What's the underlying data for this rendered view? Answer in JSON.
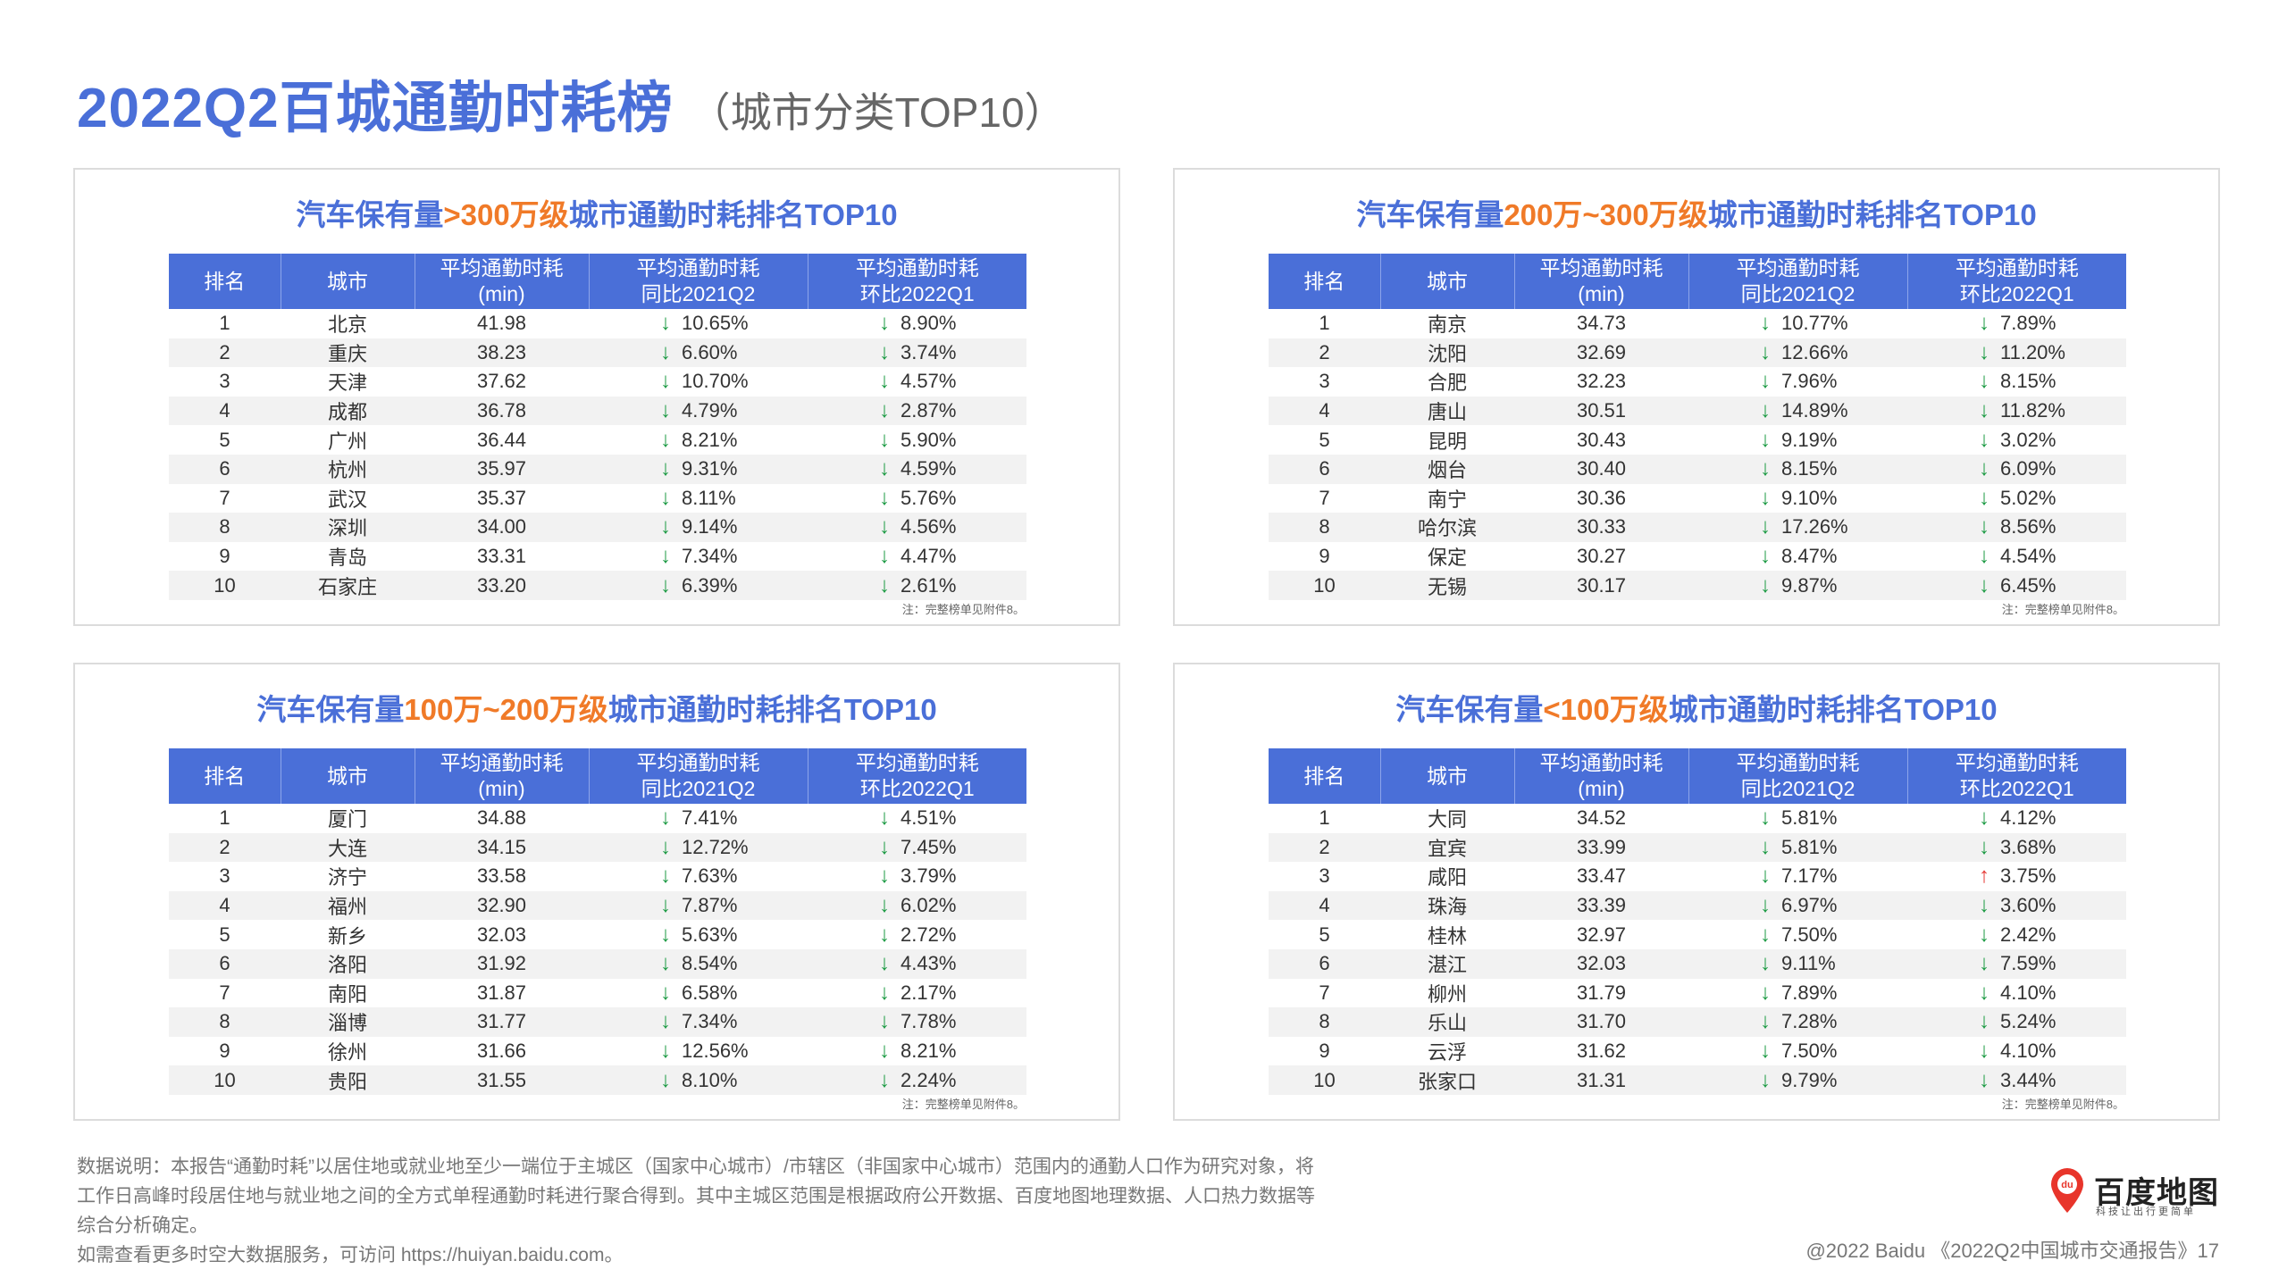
{
  "title": {
    "main": "2022Q2百城通勤时耗榜",
    "sub": "（城市分类TOP10）"
  },
  "headers": {
    "rank": "排名",
    "city": "城市",
    "avg1": "平均通勤时耗",
    "avg2": "(min)",
    "yoy1": "平均通勤时耗",
    "yoy2": "同比2021Q2",
    "qoq1": "平均通勤时耗",
    "qoq2": "环比2022Q1"
  },
  "note": "注：完整榜单见附件8。",
  "colors": {
    "accent": "#4a6fd8",
    "highlight": "#f07a28",
    "down": "#1c9a43",
    "up": "#e53935"
  },
  "panels": [
    {
      "title_pre": "汽车保有量",
      "title_hl": ">300万级",
      "title_post": "城市通勤时耗排名TOP10",
      "rows": [
        {
          "rank": "1",
          "city": "北京",
          "avg": "41.98",
          "yoy": "10.65%",
          "yoy_dir": "down",
          "qoq": "8.90%",
          "qoq_dir": "down"
        },
        {
          "rank": "2",
          "city": "重庆",
          "avg": "38.23",
          "yoy": "6.60%",
          "yoy_dir": "down",
          "qoq": "3.74%",
          "qoq_dir": "down"
        },
        {
          "rank": "3",
          "city": "天津",
          "avg": "37.62",
          "yoy": "10.70%",
          "yoy_dir": "down",
          "qoq": "4.57%",
          "qoq_dir": "down"
        },
        {
          "rank": "4",
          "city": "成都",
          "avg": "36.78",
          "yoy": "4.79%",
          "yoy_dir": "down",
          "qoq": "2.87%",
          "qoq_dir": "down"
        },
        {
          "rank": "5",
          "city": "广州",
          "avg": "36.44",
          "yoy": "8.21%",
          "yoy_dir": "down",
          "qoq": "5.90%",
          "qoq_dir": "down"
        },
        {
          "rank": "6",
          "city": "杭州",
          "avg": "35.97",
          "yoy": "9.31%",
          "yoy_dir": "down",
          "qoq": "4.59%",
          "qoq_dir": "down"
        },
        {
          "rank": "7",
          "city": "武汉",
          "avg": "35.37",
          "yoy": "8.11%",
          "yoy_dir": "down",
          "qoq": "5.76%",
          "qoq_dir": "down"
        },
        {
          "rank": "8",
          "city": "深圳",
          "avg": "34.00",
          "yoy": "9.14%",
          "yoy_dir": "down",
          "qoq": "4.56%",
          "qoq_dir": "down"
        },
        {
          "rank": "9",
          "city": "青岛",
          "avg": "33.31",
          "yoy": "7.34%",
          "yoy_dir": "down",
          "qoq": "4.47%",
          "qoq_dir": "down"
        },
        {
          "rank": "10",
          "city": "石家庄",
          "avg": "33.20",
          "yoy": "6.39%",
          "yoy_dir": "down",
          "qoq": "2.61%",
          "qoq_dir": "down"
        }
      ]
    },
    {
      "title_pre": "汽车保有量",
      "title_hl": "200万~300万级",
      "title_post": "城市通勤时耗排名TOP10",
      "rows": [
        {
          "rank": "1",
          "city": "南京",
          "avg": "34.73",
          "yoy": "10.77%",
          "yoy_dir": "down",
          "qoq": "7.89%",
          "qoq_dir": "down"
        },
        {
          "rank": "2",
          "city": "沈阳",
          "avg": "32.69",
          "yoy": "12.66%",
          "yoy_dir": "down",
          "qoq": "11.20%",
          "qoq_dir": "down"
        },
        {
          "rank": "3",
          "city": "合肥",
          "avg": "32.23",
          "yoy": "7.96%",
          "yoy_dir": "down",
          "qoq": "8.15%",
          "qoq_dir": "down"
        },
        {
          "rank": "4",
          "city": "唐山",
          "avg": "30.51",
          "yoy": "14.89%",
          "yoy_dir": "down",
          "qoq": "11.82%",
          "qoq_dir": "down"
        },
        {
          "rank": "5",
          "city": "昆明",
          "avg": "30.43",
          "yoy": "9.19%",
          "yoy_dir": "down",
          "qoq": "3.02%",
          "qoq_dir": "down"
        },
        {
          "rank": "6",
          "city": "烟台",
          "avg": "30.40",
          "yoy": "8.15%",
          "yoy_dir": "down",
          "qoq": "6.09%",
          "qoq_dir": "down"
        },
        {
          "rank": "7",
          "city": "南宁",
          "avg": "30.36",
          "yoy": "9.10%",
          "yoy_dir": "down",
          "qoq": "5.02%",
          "qoq_dir": "down"
        },
        {
          "rank": "8",
          "city": "哈尔滨",
          "avg": "30.33",
          "yoy": "17.26%",
          "yoy_dir": "down",
          "qoq": "8.56%",
          "qoq_dir": "down"
        },
        {
          "rank": "9",
          "city": "保定",
          "avg": "30.27",
          "yoy": "8.47%",
          "yoy_dir": "down",
          "qoq": "4.54%",
          "qoq_dir": "down"
        },
        {
          "rank": "10",
          "city": "无锡",
          "avg": "30.17",
          "yoy": "9.87%",
          "yoy_dir": "down",
          "qoq": "6.45%",
          "qoq_dir": "down"
        }
      ]
    },
    {
      "title_pre": "汽车保有量",
      "title_hl": "100万~200万级",
      "title_post": "城市通勤时耗排名TOP10",
      "rows": [
        {
          "rank": "1",
          "city": "厦门",
          "avg": "34.88",
          "yoy": "7.41%",
          "yoy_dir": "down",
          "qoq": "4.51%",
          "qoq_dir": "down"
        },
        {
          "rank": "2",
          "city": "大连",
          "avg": "34.15",
          "yoy": "12.72%",
          "yoy_dir": "down",
          "qoq": "7.45%",
          "qoq_dir": "down"
        },
        {
          "rank": "3",
          "city": "济宁",
          "avg": "33.58",
          "yoy": "7.63%",
          "yoy_dir": "down",
          "qoq": "3.79%",
          "qoq_dir": "down"
        },
        {
          "rank": "4",
          "city": "福州",
          "avg": "32.90",
          "yoy": "7.87%",
          "yoy_dir": "down",
          "qoq": "6.02%",
          "qoq_dir": "down"
        },
        {
          "rank": "5",
          "city": "新乡",
          "avg": "32.03",
          "yoy": "5.63%",
          "yoy_dir": "down",
          "qoq": "2.72%",
          "qoq_dir": "down"
        },
        {
          "rank": "6",
          "city": "洛阳",
          "avg": "31.92",
          "yoy": "8.54%",
          "yoy_dir": "down",
          "qoq": "4.43%",
          "qoq_dir": "down"
        },
        {
          "rank": "7",
          "city": "南阳",
          "avg": "31.87",
          "yoy": "6.58%",
          "yoy_dir": "down",
          "qoq": "2.17%",
          "qoq_dir": "down"
        },
        {
          "rank": "8",
          "city": "淄博",
          "avg": "31.77",
          "yoy": "7.34%",
          "yoy_dir": "down",
          "qoq": "7.78%",
          "qoq_dir": "down"
        },
        {
          "rank": "9",
          "city": "徐州",
          "avg": "31.66",
          "yoy": "12.56%",
          "yoy_dir": "down",
          "qoq": "8.21%",
          "qoq_dir": "down"
        },
        {
          "rank": "10",
          "city": "贵阳",
          "avg": "31.55",
          "yoy": "8.10%",
          "yoy_dir": "down",
          "qoq": "2.24%",
          "qoq_dir": "down"
        }
      ]
    },
    {
      "title_pre": "汽车保有量",
      "title_hl": "<100万级",
      "title_post": "城市通勤时耗排名TOP10",
      "rows": [
        {
          "rank": "1",
          "city": "大同",
          "avg": "34.52",
          "yoy": "5.81%",
          "yoy_dir": "down",
          "qoq": "4.12%",
          "qoq_dir": "down"
        },
        {
          "rank": "2",
          "city": "宜宾",
          "avg": "33.99",
          "yoy": "5.81%",
          "yoy_dir": "down",
          "qoq": "3.68%",
          "qoq_dir": "down"
        },
        {
          "rank": "3",
          "city": "咸阳",
          "avg": "33.47",
          "yoy": "7.17%",
          "yoy_dir": "down",
          "qoq": "3.75%",
          "qoq_dir": "up"
        },
        {
          "rank": "4",
          "city": "珠海",
          "avg": "33.39",
          "yoy": "6.97%",
          "yoy_dir": "down",
          "qoq": "3.60%",
          "qoq_dir": "down"
        },
        {
          "rank": "5",
          "city": "桂林",
          "avg": "32.97",
          "yoy": "7.50%",
          "yoy_dir": "down",
          "qoq": "2.42%",
          "qoq_dir": "down"
        },
        {
          "rank": "6",
          "city": "湛江",
          "avg": "32.03",
          "yoy": "9.11%",
          "yoy_dir": "down",
          "qoq": "7.59%",
          "qoq_dir": "down"
        },
        {
          "rank": "7",
          "city": "柳州",
          "avg": "31.79",
          "yoy": "7.89%",
          "yoy_dir": "down",
          "qoq": "4.10%",
          "qoq_dir": "down"
        },
        {
          "rank": "8",
          "city": "乐山",
          "avg": "31.70",
          "yoy": "7.28%",
          "yoy_dir": "down",
          "qoq": "5.24%",
          "qoq_dir": "down"
        },
        {
          "rank": "9",
          "city": "云浮",
          "avg": "31.62",
          "yoy": "7.50%",
          "yoy_dir": "down",
          "qoq": "4.10%",
          "qoq_dir": "down"
        },
        {
          "rank": "10",
          "city": "张家口",
          "avg": "31.31",
          "yoy": "9.79%",
          "yoy_dir": "down",
          "qoq": "3.44%",
          "qoq_dir": "down"
        }
      ]
    }
  ],
  "footer": {
    "lines": [
      "数据说明：本报告“通勤时耗”以居住地或就业地至少一端位于主城区（国家中心城市）/市辖区（非国家中心城市）范围内的通勤人口作为研究对象，将",
      "工作日高峰时段居住地与就业地之间的全方式单程通勤时耗进行聚合得到。其中主城区范围是根据政府公开数据、百度地图地理数据、人口热力数据等",
      "综合分析确定。",
      "如需查看更多时空大数据服务，可访问 https://huiyan.baidu.com。"
    ],
    "copyright": "@2022 Baidu 《2022Q2中国城市交通报告》17"
  },
  "logo": {
    "name": "百度地图",
    "slogan": "科技让出行更简单",
    "pin_text": "du",
    "icon": "map-pin-icon"
  }
}
